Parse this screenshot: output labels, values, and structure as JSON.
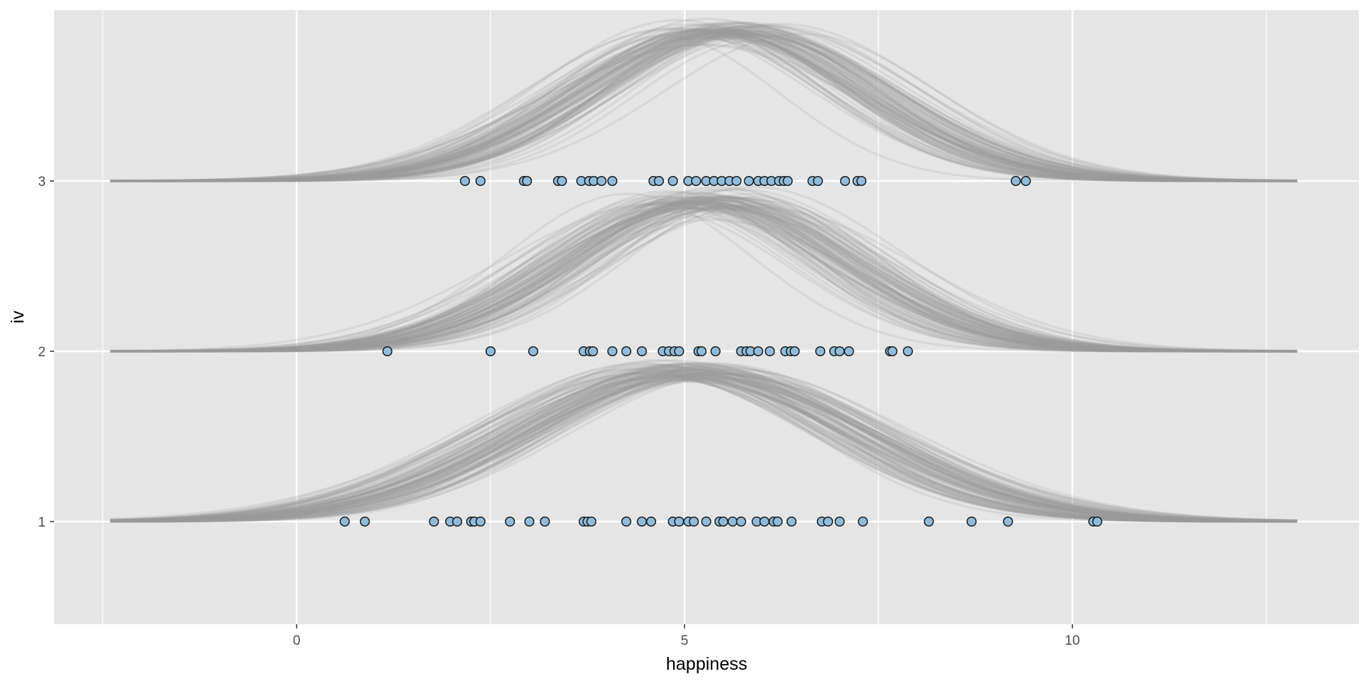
{
  "chart_data": {
    "type": "ridgeline-posterior-predictive",
    "xlabel": "happiness",
    "ylabel": "iv",
    "xlim": [
      -2.5,
      13.2
    ],
    "x_ticks": [
      0,
      5,
      10
    ],
    "x_minor_ticks": [
      -2.5,
      2.5,
      7.5,
      12.5
    ],
    "categories": [
      "1",
      "2",
      "3"
    ],
    "grid": true,
    "panel_background": "#e5e5e5",
    "grid_color": "#ffffff",
    "point_fill": "#8fbcdc",
    "point_stroke": "#1a1a1a",
    "curve_color": "#999999",
    "curve_draws": 100,
    "curve_x_range": [
      -2.4,
      12.9
    ],
    "curve_peak_height": 0.88,
    "groups": [
      {
        "level": "1",
        "mean": 5.0,
        "sd": 2.15,
        "points": [
          0.62,
          0.88,
          1.77,
          1.98,
          2.07,
          2.25,
          2.29,
          2.37,
          2.75,
          3.0,
          3.2,
          3.7,
          3.75,
          3.8,
          4.25,
          4.45,
          4.57,
          4.85,
          4.93,
          5.05,
          5.12,
          5.28,
          5.45,
          5.5,
          5.62,
          5.73,
          5.93,
          6.03,
          6.15,
          6.2,
          6.38,
          6.77,
          6.85,
          7.0,
          7.3,
          8.15,
          8.7,
          9.17,
          10.27,
          10.32
        ]
      },
      {
        "level": "2",
        "mean": 5.35,
        "sd": 1.78,
        "points": [
          1.17,
          2.5,
          3.05,
          3.7,
          3.78,
          3.82,
          4.07,
          4.25,
          4.45,
          4.72,
          4.8,
          4.87,
          4.93,
          5.18,
          5.22,
          5.4,
          5.73,
          5.8,
          5.85,
          5.95,
          6.1,
          6.3,
          6.37,
          6.42,
          6.75,
          6.93,
          7.0,
          7.12,
          7.65,
          7.68,
          7.88
        ]
      },
      {
        "level": "3",
        "mean": 5.45,
        "sd": 1.82,
        "points": [
          2.17,
          2.37,
          2.93,
          2.97,
          3.37,
          3.42,
          3.67,
          3.77,
          3.83,
          3.93,
          4.07,
          4.6,
          4.67,
          4.85,
          5.05,
          5.15,
          5.28,
          5.38,
          5.48,
          5.58,
          5.67,
          5.83,
          5.95,
          6.03,
          6.12,
          6.22,
          6.28,
          6.33,
          6.65,
          6.72,
          7.07,
          7.23,
          7.28,
          9.27,
          9.4
        ]
      }
    ]
  }
}
